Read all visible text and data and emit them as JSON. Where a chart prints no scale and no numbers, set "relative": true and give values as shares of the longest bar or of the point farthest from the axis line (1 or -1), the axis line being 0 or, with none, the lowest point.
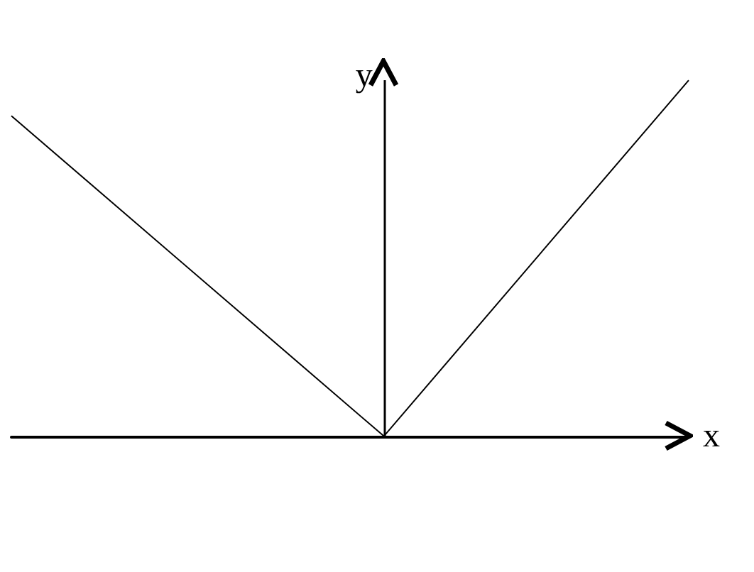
{
  "chart_data": {
    "type": "line",
    "relative": true,
    "xlabel": "x",
    "ylabel": "y",
    "grid": false,
    "marker": "none",
    "line_style": "solid",
    "categories": [
      null,
      null,
      null,
      null,
      null,
      null,
      null,
      null,
      null,
      null,
      null,
      null,
      null,
      null,
      null,
      null,
      null,
      null,
      null,
      null,
      null
    ],
    "series": [
      {
        "color": "#000000",
        "values": [
          0.9,
          null,
          null,
          null,
          null,
          null,
          null,
          null,
          null,
          null,
          null,
          0,
          null,
          null,
          null,
          null,
          null,
          null,
          null,
          null,
          1
        ]
      }
    ]
  }
}
